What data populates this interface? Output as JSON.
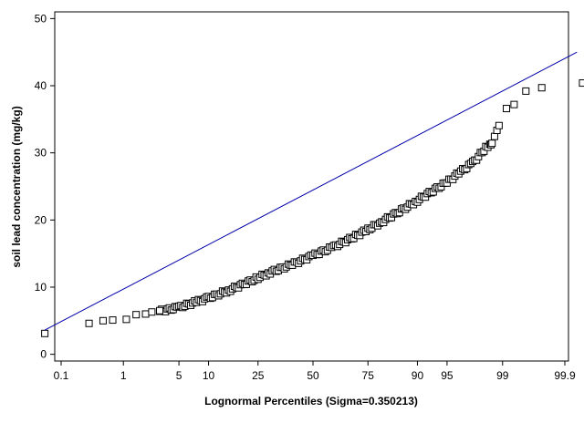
{
  "chart_data": {
    "type": "scatter",
    "title": "",
    "xlabel": "Lognormal Percentiles (Sigma=0.350213)",
    "ylabel": "soil lead concentration (mg/kg)",
    "x_scale": "probit-lognormal",
    "x_ticks": [
      0.1,
      1,
      5,
      10,
      25,
      50,
      75,
      90,
      95,
      99,
      99.9
    ],
    "x_tick_labels": [
      "0.1",
      "1",
      "5",
      "10",
      "25",
      "50",
      "75",
      "90",
      "95",
      "99",
      "99.9"
    ],
    "ylim": [
      -1,
      51
    ],
    "y_ticks": [
      0,
      10,
      20,
      30,
      40,
      50
    ],
    "y_tick_labels": [
      "0",
      "10",
      "20",
      "30",
      "40",
      "50"
    ],
    "grid": false,
    "fit_line": {
      "from": {
        "percentile": 0.05,
        "value": 3.6
      },
      "to": {
        "percentile": 99.94,
        "value": 45.0
      },
      "color": "#0000aa"
    },
    "series": [
      {
        "marker": "open-square",
        "color": "#000000",
        "points": [
          [
            0.05,
            3.1
          ],
          [
            0.3,
            4.6
          ],
          [
            0.5,
            5.0
          ],
          [
            0.7,
            5.1
          ],
          [
            1.1,
            5.2
          ],
          [
            1.5,
            5.9
          ],
          [
            2.0,
            6.0
          ],
          [
            2.4,
            6.3
          ],
          [
            3.0,
            6.5
          ],
          [
            99.12,
            36.6
          ],
          [
            99.32,
            37.2
          ],
          [
            99.55,
            39.2
          ],
          [
            99.75,
            39.7
          ],
          [
            99.953,
            40.4
          ]
        ],
        "band": [
          [
            3.0,
            6.4
          ],
          [
            5,
            7.0
          ],
          [
            8,
            7.9
          ],
          [
            10,
            8.4
          ],
          [
            15,
            9.5
          ],
          [
            20,
            10.5
          ],
          [
            25,
            11.4
          ],
          [
            30,
            12.2
          ],
          [
            40,
            13.4
          ],
          [
            50,
            14.7
          ],
          [
            60,
            16.0
          ],
          [
            70,
            17.6
          ],
          [
            75,
            18.6
          ],
          [
            80,
            19.7
          ],
          [
            85,
            21.1
          ],
          [
            90,
            22.9
          ],
          [
            93,
            24.4
          ],
          [
            95,
            25.6
          ],
          [
            96.5,
            27.2
          ],
          [
            97.5,
            28.5
          ],
          [
            98,
            29.8
          ],
          [
            98.3,
            30.8
          ],
          [
            98.5,
            31.3
          ],
          [
            98.6,
            31.6
          ],
          [
            98.8,
            33.6
          ],
          [
            98.95,
            34.5
          ]
        ]
      }
    ]
  }
}
